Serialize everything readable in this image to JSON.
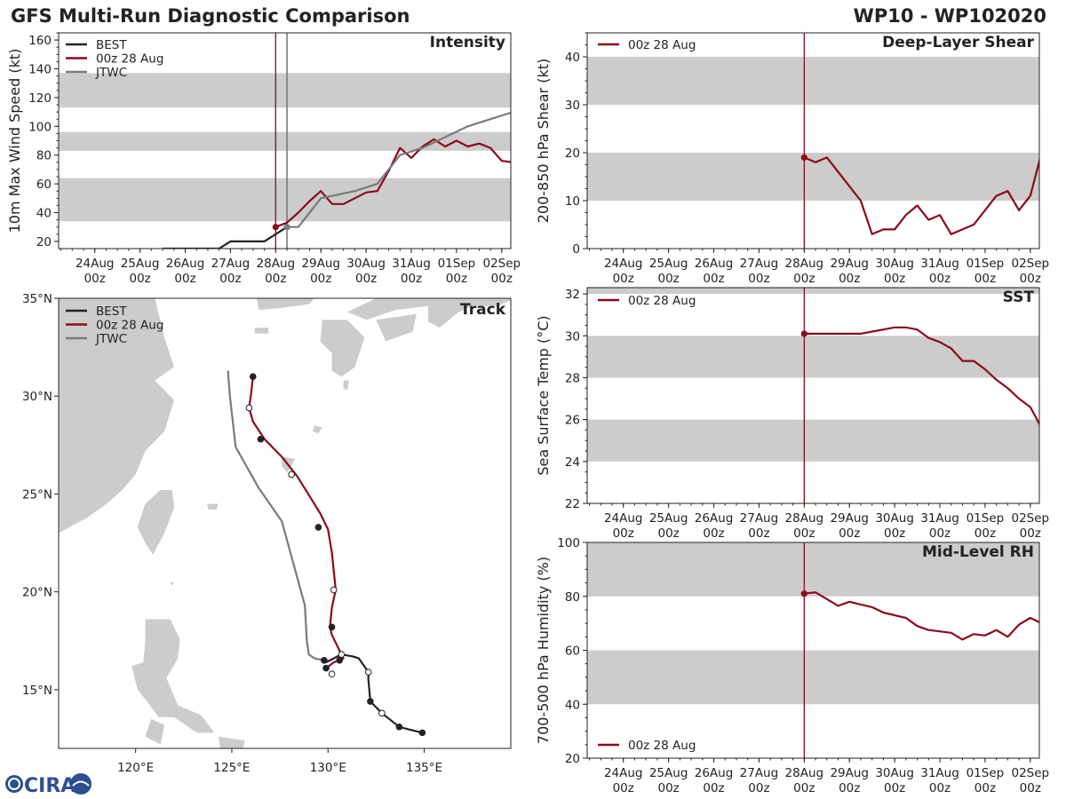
{
  "header": {
    "title": "GFS Multi-Run Diagnostic Comparison",
    "storm_id": "WP10 - WP102020",
    "logo_text": "CIRA"
  },
  "colors": {
    "best": "#222222",
    "run": "#8b0a1a",
    "jtwc": "#7a7a7a",
    "band": "#cccccc",
    "land": "#cccccc"
  },
  "time_axis": {
    "labels": [
      "24Aug",
      "25Aug",
      "26Aug",
      "27Aug",
      "28Aug",
      "29Aug",
      "30Aug",
      "31Aug",
      "01Sep",
      "02Sep"
    ],
    "sublabel": "00z",
    "start_day": 24,
    "init_day": 28
  },
  "chart_data": [
    {
      "id": "intensity",
      "type": "line",
      "title": "Intensity",
      "ylabel": "10m Max Wind Speed (kt)",
      "ylim": [
        15,
        165
      ],
      "yticks": [
        20,
        40,
        60,
        80,
        100,
        120,
        140,
        160
      ],
      "xlim_days": [
        23.2,
        33.2
      ],
      "bands": [
        [
          34,
          64
        ],
        [
          83,
          96
        ],
        [
          113,
          137
        ]
      ],
      "init_line_day": 28,
      "jtwc_line_day": 28.25,
      "legend": [
        "BEST",
        "00z 28 Aug",
        "JTWC"
      ],
      "series": [
        {
          "name": "BEST",
          "x": [
            25.5,
            26.75,
            27,
            27.75,
            28.25
          ],
          "y": [
            15,
            15,
            20,
            20,
            30
          ]
        },
        {
          "name": "00z 28 Aug",
          "x": [
            28,
            28.25,
            28.5,
            28.75,
            29,
            29.25,
            29.5,
            29.75,
            30,
            30.25,
            30.5,
            30.75,
            31,
            31.25,
            31.5,
            31.75,
            32,
            32.25,
            32.5,
            32.75,
            33,
            33.25
          ],
          "y": [
            30,
            33,
            40,
            48,
            55,
            46,
            46,
            50,
            54,
            55,
            69,
            85,
            78,
            86,
            91,
            86,
            90,
            86,
            88,
            85,
            76,
            75
          ]
        },
        {
          "name": "JTWC",
          "x": [
            28.25,
            28.5,
            29,
            29.75,
            30.25,
            30.75,
            31.25,
            32.25,
            33.25
          ],
          "y": [
            30,
            30,
            50,
            55,
            60,
            80,
            85,
            100,
            110
          ]
        }
      ],
      "markers": [
        {
          "series": "00z 28 Aug",
          "x": 28,
          "y": 30
        },
        {
          "series": "JTWC",
          "x": 28.25,
          "y": 30
        }
      ]
    },
    {
      "id": "shear",
      "type": "line",
      "title": "Deep-Layer Shear",
      "ylabel": "200-850 hPa Shear (kt)",
      "ylim": [
        0,
        45
      ],
      "yticks": [
        0,
        10,
        20,
        30,
        40
      ],
      "xlim_days": [
        23.2,
        33.2
      ],
      "bands": [
        [
          10,
          20
        ],
        [
          30,
          40
        ]
      ],
      "init_line_day": 28,
      "legend": [
        "00z 28 Aug"
      ],
      "series": [
        {
          "name": "00z 28 Aug",
          "x": [
            28,
            28.25,
            28.5,
            28.75,
            29,
            29.25,
            29.5,
            29.75,
            30,
            30.25,
            30.5,
            30.75,
            31,
            31.25,
            31.5,
            31.75,
            32,
            32.25,
            32.5,
            32.75,
            33,
            33.25
          ],
          "y": [
            19,
            18,
            19,
            16,
            13,
            10,
            3,
            4,
            4,
            7,
            9,
            6,
            7,
            3,
            4,
            5,
            8,
            11,
            12,
            8,
            11,
            20
          ]
        }
      ]
    },
    {
      "id": "sst",
      "type": "line",
      "title": "SST",
      "ylabel": "Sea Surface Temp (°C)",
      "ylim": [
        22,
        32.3
      ],
      "yticks": [
        22,
        24,
        26,
        28,
        30,
        32
      ],
      "xlim_days": [
        23.2,
        33.2
      ],
      "bands": [
        [
          24,
          26
        ],
        [
          28,
          30
        ],
        [
          32,
          34
        ]
      ],
      "init_line_day": 28,
      "legend": [
        "00z 28 Aug"
      ],
      "series": [
        {
          "name": "00z 28 Aug",
          "x": [
            28,
            28.5,
            29,
            29.25,
            29.5,
            29.75,
            30,
            30.25,
            30.5,
            30.75,
            31,
            31.25,
            31.5,
            31.75,
            32,
            32.25,
            32.5,
            32.75,
            33,
            33.25
          ],
          "y": [
            30.1,
            30.1,
            30.1,
            30.1,
            30.2,
            30.3,
            30.4,
            30.4,
            30.3,
            29.9,
            29.7,
            29.4,
            28.8,
            28.8,
            28.4,
            27.9,
            27.5,
            27,
            26.6,
            25.6
          ]
        }
      ]
    },
    {
      "id": "rh",
      "type": "line",
      "title": "Mid-Level RH",
      "ylabel": "700-500 hPa Humidity (%)",
      "ylim": [
        20,
        100
      ],
      "yticks": [
        20,
        40,
        60,
        80,
        100
      ],
      "xlim_days": [
        23.2,
        33.2
      ],
      "bands": [
        [
          40,
          60
        ],
        [
          80,
          100
        ]
      ],
      "init_line_day": 28,
      "legend": [
        "00z 28 Aug"
      ],
      "legend_position": "bottom-left",
      "series": [
        {
          "name": "00z 28 Aug",
          "x": [
            28,
            28.25,
            28.5,
            28.75,
            29,
            29.25,
            29.5,
            29.75,
            30,
            30.25,
            30.5,
            30.75,
            31,
            31.25,
            31.5,
            31.75,
            32,
            32.25,
            32.5,
            32.75,
            33,
            33.25
          ],
          "y": [
            81,
            81.5,
            79,
            76.5,
            78,
            77,
            76,
            74,
            73,
            72,
            69,
            67.5,
            67,
            66.5,
            64,
            66,
            65.5,
            67.5,
            65,
            69.5,
            72,
            70
          ]
        }
      ]
    },
    {
      "id": "track",
      "type": "line",
      "title": "Track",
      "xlim_lon": [
        116,
        139.5
      ],
      "ylim_lat": [
        12,
        35
      ],
      "xticks": [
        120,
        125,
        130,
        135
      ],
      "xtick_labels": [
        "120°E",
        "125°E",
        "130°E",
        "135°E"
      ],
      "yticks": [
        15,
        20,
        25,
        30,
        35
      ],
      "ytick_labels": [
        "15°N",
        "20°N",
        "25°N",
        "30°N",
        "35°N"
      ],
      "legend": [
        "BEST",
        "00z 28 Aug",
        "JTWC"
      ],
      "series": [
        {
          "name": "BEST",
          "lon": [
            134.9,
            133.7,
            132.8,
            132.5,
            132.2,
            132.1,
            132.1,
            131.6,
            131.3,
            130.7,
            129.9
          ],
          "lat": [
            12.8,
            13.1,
            13.8,
            14.1,
            14.4,
            15.5,
            15.9,
            16.6,
            16.7,
            16.8,
            16.4
          ]
        },
        {
          "name": "00z 28 Aug",
          "lon": [
            129.9,
            130.3,
            130.6,
            130.8,
            130.4,
            130.2,
            130.1,
            130.2,
            130.4,
            130.2,
            130,
            129.6,
            129.1,
            128.4,
            127.6,
            126.7,
            126.1,
            125.9,
            126,
            126.1
          ],
          "lat": [
            16.1,
            16.4,
            16.5,
            16.6,
            17.4,
            17.8,
            18.2,
            19.2,
            20.1,
            22,
            23.2,
            24,
            24.8,
            25.9,
            26.9,
            27.8,
            28.7,
            29.4,
            30.1,
            31
          ]
        },
        {
          "name": "JTWC",
          "lon": [
            129.8,
            129.3,
            129,
            128.9,
            128.8,
            127.6,
            126.4,
            125.2,
            124.9,
            124.8
          ],
          "lat": [
            16.5,
            16.6,
            16.8,
            17.5,
            19.3,
            23.6,
            25.3,
            27.4,
            30,
            31.3
          ]
        }
      ],
      "best_dots": [
        [
          134.9,
          12.8,
          "filled"
        ],
        [
          133.7,
          13.1,
          "filled"
        ],
        [
          132.8,
          13.8,
          "open"
        ],
        [
          132.2,
          14.4,
          "filled"
        ],
        [
          132.1,
          15.9,
          "open"
        ],
        [
          130.7,
          16.8,
          "open"
        ],
        [
          130.2,
          15.8,
          "open"
        ]
      ],
      "run_dots": [
        [
          129.9,
          16.1,
          "filled"
        ],
        [
          130.6,
          16.5,
          "filled"
        ],
        [
          130.2,
          18.2,
          "filled"
        ],
        [
          130.3,
          20.1,
          "open"
        ],
        [
          129.5,
          23.3,
          "filled"
        ],
        [
          128.1,
          26,
          "open"
        ],
        [
          126.5,
          27.8,
          "filled"
        ],
        [
          125.9,
          29.4,
          "open"
        ],
        [
          126.1,
          31,
          "filled"
        ]
      ],
      "jtwc_dots": [
        [
          129.8,
          16.5,
          "filled"
        ]
      ]
    }
  ]
}
